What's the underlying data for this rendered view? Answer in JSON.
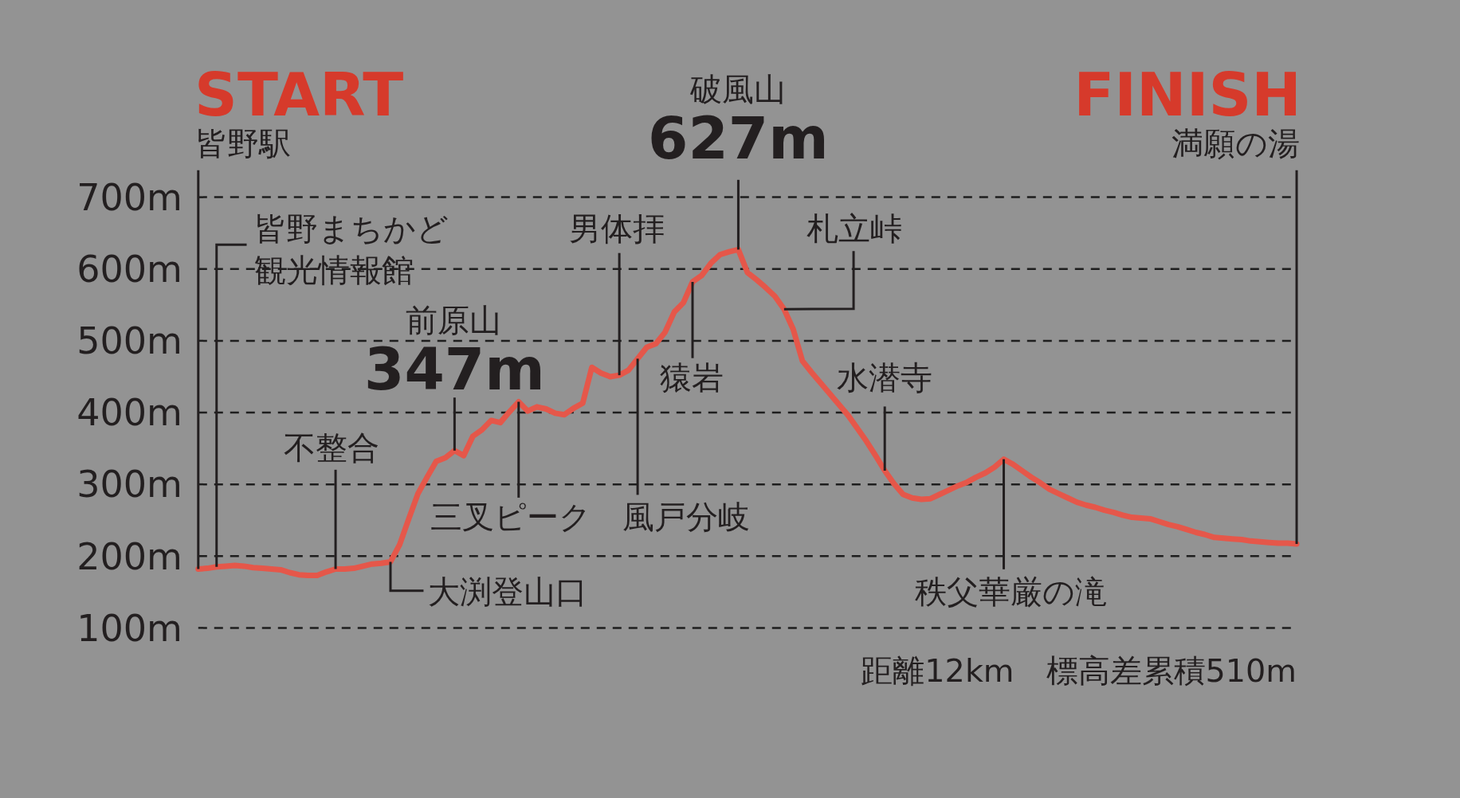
{
  "chart_data": {
    "type": "line",
    "categories": [
      null,
      null,
      null,
      null,
      null,
      null,
      null,
      null,
      null,
      null,
      null,
      null,
      null,
      null,
      null,
      null,
      null,
      null,
      null,
      null,
      null,
      null,
      null,
      null,
      null,
      null,
      null,
      null,
      null,
      null,
      null,
      null,
      null,
      null,
      null,
      null,
      null,
      null,
      null,
      null,
      null,
      null,
      null,
      null,
      null,
      null,
      null,
      null,
      null,
      null,
      null,
      null,
      null,
      null,
      null,
      null,
      null,
      null,
      null,
      null,
      null,
      null,
      null,
      null,
      null,
      null,
      null,
      null,
      null,
      null,
      null,
      null,
      null,
      null,
      null,
      null,
      null,
      null,
      null,
      null,
      null,
      null,
      null,
      null,
      null,
      null,
      null,
      null,
      null,
      null,
      null,
      null,
      null,
      null,
      null,
      null,
      null,
      null,
      null,
      null,
      null,
      null,
      null,
      null,
      null,
      null,
      null,
      null,
      null,
      null,
      null,
      null,
      null,
      null,
      null,
      null,
      null,
      null,
      null,
      null,
      null
    ],
    "series": [
      {
        "color": "#e5574a",
        "values": [
          182,
          183,
          185,
          186,
          187,
          186,
          184,
          183,
          182,
          181,
          177,
          174,
          173,
          173,
          178,
          182,
          182,
          183,
          186,
          189,
          190,
          192,
          216,
          252,
          287,
          310,
          332,
          337,
          347,
          340,
          367,
          376,
          389,
          386,
          401,
          415,
          402,
          408,
          405,
          399,
          397,
          406,
          413,
          463,
          455,
          450,
          452,
          459,
          475,
          491,
          496,
          512,
          540,
          553,
          582,
          591,
          608,
          620,
          624,
          627,
          595,
          585,
          574,
          562,
          544,
          516,
          472,
          456,
          441,
          426,
          411,
          396,
          378,
          360,
          340,
          319,
          301,
          286,
          281,
          279,
          280,
          286,
          292,
          298,
          303,
          310,
          316,
          324,
          335,
          328,
          319,
          310,
          302,
          293,
          287,
          281,
          275,
          271,
          268,
          264,
          261,
          257,
          254,
          253,
          252,
          248,
          244,
          241,
          237,
          233,
          230,
          226,
          225,
          224,
          223,
          221,
          220,
          219,
          218,
          218,
          217
        ],
        "value_labels": [
          null,
          null,
          null,
          null,
          null,
          null,
          null,
          null,
          null,
          null,
          null,
          null,
          null,
          null,
          null,
          null,
          null,
          null,
          null,
          null,
          null,
          null,
          null,
          null,
          null,
          null,
          null,
          null,
          "347m",
          null,
          null,
          null,
          null,
          null,
          null,
          null,
          null,
          null,
          null,
          null,
          null,
          null,
          null,
          null,
          null,
          null,
          null,
          null,
          null,
          null,
          null,
          null,
          null,
          null,
          null,
          null,
          null,
          null,
          null,
          "627m",
          null,
          null,
          null,
          null,
          null,
          null,
          null,
          null,
          null,
          null,
          null,
          null,
          null,
          null,
          null,
          null,
          null,
          null,
          null,
          null,
          null,
          null,
          null,
          null,
          null,
          null,
          null,
          null,
          null,
          null,
          null,
          null,
          null,
          null,
          null,
          null,
          null,
          null,
          null,
          null,
          null,
          null,
          null,
          null,
          null,
          null,
          null,
          null,
          null,
          null,
          null,
          null,
          null,
          null,
          null,
          null,
          null,
          null,
          null,
          null,
          null
        ]
      }
    ],
    "ylim": [
      100,
      700
    ],
    "yticks": [
      {
        "value": 100,
        "label": "100m"
      },
      {
        "value": 200,
        "label": "200m"
      },
      {
        "value": 300,
        "label": "300m"
      },
      {
        "value": 400,
        "label": "400m"
      },
      {
        "value": 500,
        "label": "500m"
      },
      {
        "value": 600,
        "label": "600m"
      },
      {
        "value": 700,
        "label": "700m"
      }
    ],
    "tick_labels": "y",
    "grid": "y",
    "annotations": [
      "START",
      "皆野駅",
      "FINISH",
      "満願の湯",
      "破風山",
      "皆野まちかど",
      "観光情報館",
      "男体拝",
      "札立峠",
      "前原山",
      "猿岩",
      "水潜寺",
      "不整合",
      "三叉ピーク",
      "風戸分岐",
      "大渕登山口",
      "秩父華厳の滝",
      "距離12km　標高差累積510m"
    ]
  }
}
